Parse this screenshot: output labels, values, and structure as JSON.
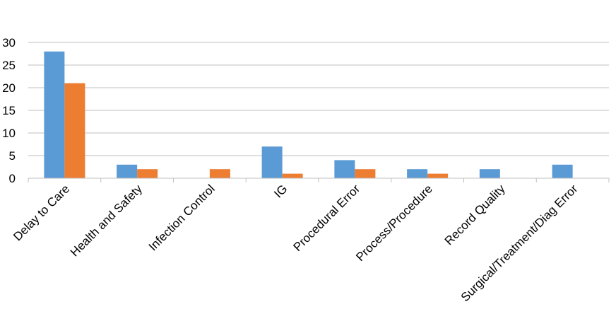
{
  "chart_data": {
    "type": "bar",
    "categories": [
      "Delay to Care",
      "Health and Safety",
      "Infection Control",
      "IG",
      "Procedural Error",
      "Process/Procedure",
      "Record Quality",
      "Surgical/Treatment/Diag Error"
    ],
    "series": [
      {
        "values": [
          28,
          3,
          0,
          7,
          4,
          2,
          2,
          3
        ],
        "color": "#5b9bd5"
      },
      {
        "values": [
          21,
          2,
          2,
          1,
          2,
          1,
          0,
          0
        ],
        "color": "#ed7d31"
      }
    ],
    "yticks": [
      "0",
      "5",
      "10",
      "15",
      "20",
      "25",
      "30"
    ],
    "ylim": [
      0,
      30
    ],
    "grid": true,
    "legend": "none"
  }
}
